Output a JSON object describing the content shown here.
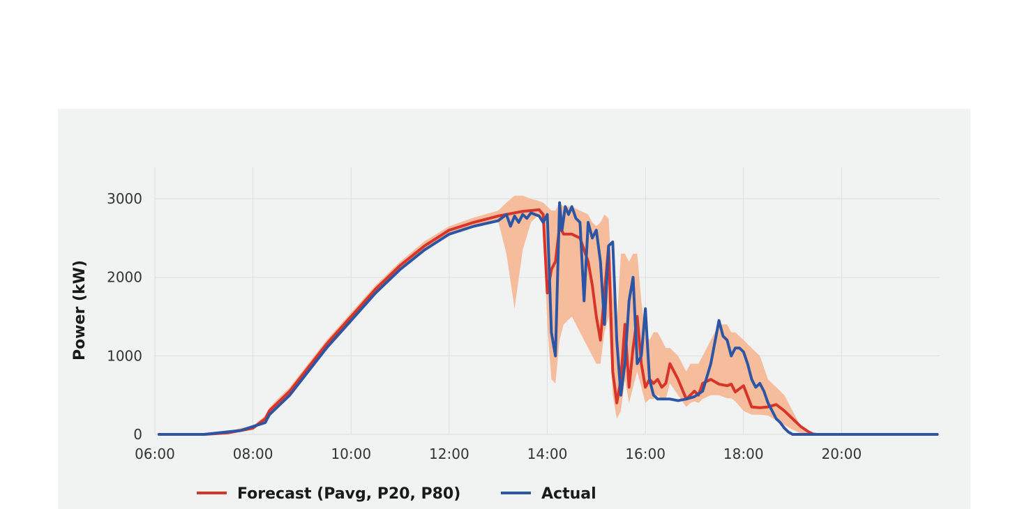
{
  "chart_data": {
    "type": "line",
    "title": "",
    "xlabel": "",
    "ylabel": "Power (kW)",
    "xlim": [
      "06:00",
      "22:00"
    ],
    "ylim": [
      0,
      3400
    ],
    "grid": true,
    "legend_placement": "bottom",
    "x_ticks": [
      "06:00",
      "08:00",
      "10:00",
      "12:00",
      "14:00",
      "16:00",
      "18:00",
      "20:00"
    ],
    "y_ticks": [
      0,
      1000,
      2000,
      3000
    ],
    "legend": [
      {
        "label": "Forecast (Pavg, P20, P80)",
        "color": "#d7342a"
      },
      {
        "label": "Actual",
        "color": "#2c56a3"
      }
    ],
    "series": [
      {
        "name": "Forecast (Pavg, P20, P80)",
        "color": "#d7342a",
        "band_color": "#f6b792",
        "x": [
          "06:05",
          "07:00",
          "07:30",
          "07:45",
          "08:00",
          "08:15",
          "08:20",
          "08:30",
          "08:45",
          "09:00",
          "09:30",
          "10:00",
          "10:30",
          "11:00",
          "11:30",
          "12:00",
          "12:30",
          "13:00",
          "13:10",
          "13:20",
          "13:30",
          "13:40",
          "13:50",
          "13:55",
          "14:00",
          "14:05",
          "14:10",
          "14:15",
          "14:20",
          "14:30",
          "14:40",
          "14:50",
          "14:55",
          "15:00",
          "15:05",
          "15:10",
          "15:15",
          "15:20",
          "15:25",
          "15:30",
          "15:35",
          "15:40",
          "15:45",
          "15:50",
          "15:55",
          "16:00",
          "16:05",
          "16:10",
          "16:15",
          "16:20",
          "16:25",
          "16:30",
          "16:40",
          "16:50",
          "16:55",
          "17:00",
          "17:05",
          "17:10",
          "17:20",
          "17:30",
          "17:40",
          "17:45",
          "17:50",
          "18:00",
          "18:10",
          "18:20",
          "18:30",
          "18:40",
          "18:50",
          "19:00",
          "19:10",
          "19:20",
          "19:25",
          "19:30",
          "19:40",
          "19:50",
          "20:00",
          "20:30",
          "21:00",
          "21:30",
          "21:57"
        ],
        "values": [
          0,
          0,
          20,
          50,
          80,
          200,
          300,
          400,
          550,
          750,
          1150,
          1500,
          1850,
          2150,
          2400,
          2600,
          2700,
          2780,
          2800,
          2820,
          2840,
          2850,
          2860,
          2800,
          1800,
          2100,
          2200,
          2650,
          2550,
          2550,
          2500,
          2200,
          1900,
          1500,
          1200,
          1800,
          2400,
          800,
          400,
          700,
          1400,
          600,
          1100,
          1500,
          900,
          600,
          700,
          650,
          700,
          600,
          650,
          900,
          700,
          450,
          500,
          550,
          500,
          650,
          700,
          640,
          620,
          640,
          540,
          620,
          350,
          340,
          350,
          380,
          300,
          200,
          100,
          30,
          5,
          0,
          0,
          0,
          0,
          0,
          0,
          0,
          0
        ],
        "p20": [
          0,
          0,
          10,
          30,
          60,
          170,
          270,
          360,
          510,
          710,
          1100,
          1460,
          1810,
          2110,
          2360,
          2560,
          2660,
          2710,
          2300,
          1600,
          2350,
          2700,
          2800,
          2700,
          1400,
          700,
          650,
          1200,
          1400,
          1500,
          1300,
          1100,
          1000,
          900,
          900,
          1300,
          1500,
          500,
          200,
          300,
          700,
          400,
          600,
          800,
          600,
          400,
          450,
          450,
          500,
          450,
          450,
          650,
          500,
          350,
          400,
          420,
          400,
          450,
          500,
          500,
          460,
          460,
          420,
          300,
          250,
          250,
          240,
          180,
          120,
          60,
          15,
          0,
          0,
          0,
          0,
          0,
          0,
          0,
          0,
          0,
          0
        ],
        "p80": [
          0,
          0,
          40,
          80,
          110,
          240,
          340,
          450,
          600,
          800,
          1200,
          1550,
          1900,
          2200,
          2460,
          2650,
          2760,
          2850,
          2950,
          3040,
          3040,
          3000,
          2970,
          2950,
          2900,
          2850,
          2850,
          2950,
          2900,
          2900,
          2850,
          2800,
          2700,
          2650,
          2700,
          2800,
          2750,
          1800,
          1400,
          2300,
          2300,
          2200,
          2300,
          2300,
          1700,
          1300,
          1200,
          1300,
          1300,
          1200,
          1100,
          1100,
          1000,
          800,
          900,
          900,
          900,
          1000,
          1200,
          1400,
          1400,
          1300,
          1300,
          1200,
          1100,
          1000,
          700,
          600,
          500,
          300,
          100,
          30,
          10,
          0,
          0,
          0,
          0,
          0,
          0,
          0,
          0
        ]
      },
      {
        "name": "Actual",
        "color": "#2c56a3",
        "x": [
          "06:05",
          "07:00",
          "07:45",
          "08:00",
          "08:15",
          "08:20",
          "08:30",
          "08:45",
          "09:00",
          "09:30",
          "10:00",
          "10:30",
          "11:00",
          "11:30",
          "12:00",
          "12:30",
          "13:00",
          "13:10",
          "13:15",
          "13:20",
          "13:25",
          "13:30",
          "13:35",
          "13:40",
          "13:45",
          "13:50",
          "13:55",
          "14:00",
          "14:05",
          "14:10",
          "14:15",
          "14:18",
          "14:22",
          "14:26",
          "14:30",
          "14:35",
          "14:40",
          "14:45",
          "14:50",
          "14:55",
          "15:00",
          "15:05",
          "15:10",
          "15:15",
          "15:20",
          "15:25",
          "15:30",
          "15:35",
          "15:40",
          "15:45",
          "15:50",
          "15:55",
          "16:00",
          "16:05",
          "16:10",
          "16:15",
          "16:20",
          "16:25",
          "16:30",
          "16:40",
          "16:50",
          "17:00",
          "17:10",
          "17:20",
          "17:30",
          "17:35",
          "17:40",
          "17:45",
          "17:50",
          "17:55",
          "18:00",
          "18:05",
          "18:10",
          "18:15",
          "18:20",
          "18:25",
          "18:30",
          "18:35",
          "18:40",
          "18:45",
          "18:50",
          "18:55",
          "19:00",
          "19:10",
          "19:20",
          "19:30",
          "19:40",
          "19:50",
          "20:00",
          "20:30",
          "21:00",
          "21:30",
          "21:57"
        ],
        "values": [
          0,
          0,
          50,
          100,
          150,
          250,
          350,
          500,
          700,
          1100,
          1450,
          1800,
          2100,
          2350,
          2550,
          2650,
          2720,
          2800,
          2650,
          2780,
          2700,
          2800,
          2750,
          2820,
          2800,
          2780,
          2700,
          2800,
          1300,
          1000,
          2950,
          2600,
          2900,
          2800,
          2900,
          2750,
          2700,
          1700,
          2700,
          2500,
          2600,
          2200,
          1400,
          2400,
          2450,
          1200,
          500,
          900,
          1700,
          2000,
          900,
          1000,
          1600,
          700,
          500,
          450,
          450,
          450,
          450,
          430,
          450,
          480,
          550,
          900,
          1450,
          1250,
          1200,
          1000,
          1100,
          1100,
          1050,
          900,
          700,
          600,
          650,
          550,
          400,
          300,
          200,
          150,
          80,
          30,
          0,
          0,
          0,
          0,
          0,
          0,
          0,
          0,
          0,
          0,
          0
        ]
      }
    ]
  }
}
